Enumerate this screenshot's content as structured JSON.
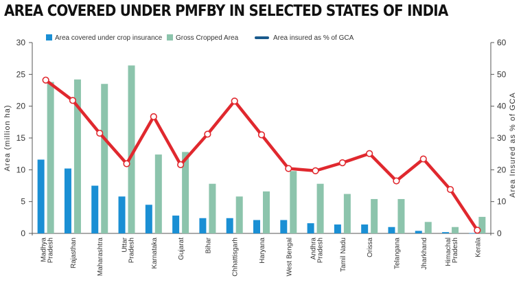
{
  "title": "AREA COVERED UNDER PMFBY IN SELECTED STATES OF INDIA",
  "chart_data": {
    "type": "bar",
    "title": "AREA COVERED UNDER PMFBY IN SELECTED STATES OF INDIA",
    "categories": [
      [
        "Madhya",
        "Pradesh"
      ],
      [
        "Rajasthan"
      ],
      [
        "Maharashtra"
      ],
      [
        "Uttar",
        "Pradesh"
      ],
      [
        "Karnataka"
      ],
      [
        "Gujarat"
      ],
      [
        "Bihar"
      ],
      [
        "Chhattisgarh"
      ],
      [
        "Haryana"
      ],
      [
        "West Bengal"
      ],
      [
        "Andhra",
        "Pradesh"
      ],
      [
        "Tamil Nadu"
      ],
      [
        "Orissa"
      ],
      [
        "Telangana"
      ],
      [
        "Jharkhand"
      ],
      [
        "Himachal",
        "Pradesh"
      ],
      [
        "Kerala"
      ]
    ],
    "series": [
      {
        "name": "Area covered under crop insurance",
        "type": "bar",
        "axis": "left",
        "color": "#1a8fd4",
        "values": [
          11.6,
          10.2,
          7.5,
          5.8,
          4.5,
          2.8,
          2.4,
          2.4,
          2.1,
          2.1,
          1.6,
          1.4,
          1.4,
          1.0,
          0.4,
          0.2,
          0.05
        ]
      },
      {
        "name": "Gross Cropped Area",
        "type": "bar",
        "axis": "left",
        "color": "#8cc4ac",
        "values": [
          23.8,
          24.2,
          23.5,
          26.4,
          12.4,
          12.8,
          7.8,
          5.8,
          6.6,
          9.8,
          7.8,
          6.2,
          5.4,
          5.4,
          1.8,
          1.0,
          2.6
        ]
      },
      {
        "name": "Area insured as % of GCA",
        "type": "line",
        "axis": "right",
        "color": "#e0282e",
        "values": [
          48.2,
          41.8,
          31.5,
          21.9,
          36.7,
          21.6,
          31.2,
          41.6,
          31.0,
          20.4,
          19.7,
          22.2,
          25.1,
          16.5,
          23.4,
          13.8,
          1.0
        ]
      }
    ],
    "legend_swatch_line_color": "#1a5a8c",
    "left_axis": {
      "label": "Area (million ha)",
      "range": [
        0,
        30
      ],
      "ticks": [
        "0",
        "5",
        "10",
        "15",
        "20",
        "25",
        "30"
      ]
    },
    "right_axis": {
      "label": "Area Insured as % of GCA",
      "range": [
        0,
        60
      ],
      "ticks": [
        "0",
        "10",
        "20",
        "30",
        "40",
        "50",
        "60"
      ]
    },
    "legend_position": "top"
  }
}
